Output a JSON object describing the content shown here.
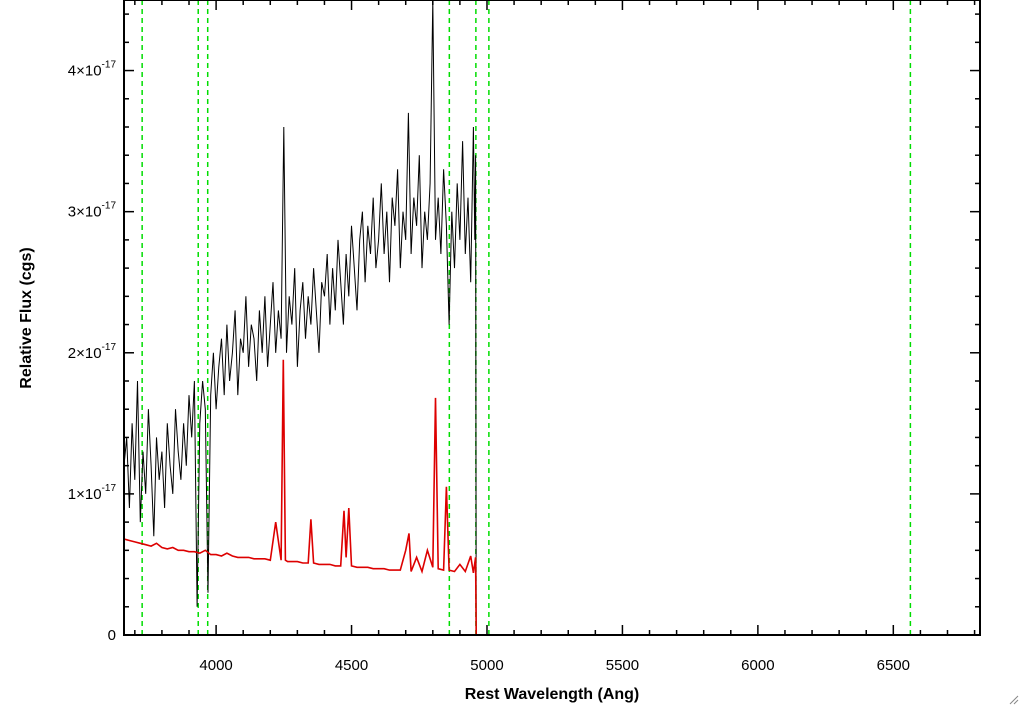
{
  "chart_data": {
    "type": "line",
    "title": "",
    "xlabel": "Rest Wavelength (Ang)",
    "ylabel": "Relative Flux (cgs)",
    "xlim": [
      3660,
      6820
    ],
    "ylim": [
      0,
      4.5e-17
    ],
    "x_ticks": [
      4000,
      4500,
      5000,
      5500,
      6000,
      6500
    ],
    "x_tick_labels": [
      "4000",
      "4500",
      "5000",
      "5500",
      "6000",
      "6500"
    ],
    "y_ticks": [
      0,
      1e-17,
      2e-17,
      3e-17,
      4e-17
    ],
    "y_tick_labels": [
      {
        "value": 0,
        "mantissa": "0",
        "exponent": ""
      },
      {
        "value": 1e-17,
        "mantissa": "1×10",
        "exponent": "-17"
      },
      {
        "value": 2e-17,
        "mantissa": "2×10",
        "exponent": "-17"
      },
      {
        "value": 3e-17,
        "mantissa": "3×10",
        "exponent": "-17"
      },
      {
        "value": 4e-17,
        "mantissa": "4×10",
        "exponent": "-17"
      }
    ],
    "grid": false,
    "legend": "none",
    "vertical_reference_lines": {
      "color": "#00dd00",
      "style": "dashed",
      "x": [
        3727,
        3934,
        3969,
        4861,
        4959,
        5007,
        6563
      ]
    },
    "series": [
      {
        "color": "#000000",
        "x": [
          3660,
          3670,
          3680,
          3690,
          3700,
          3710,
          3720,
          3730,
          3740,
          3750,
          3760,
          3770,
          3780,
          3790,
          3800,
          3810,
          3820,
          3830,
          3840,
          3850,
          3860,
          3870,
          3880,
          3890,
          3900,
          3910,
          3920,
          3930,
          3940,
          3950,
          3960,
          3970,
          3980,
          3990,
          4000,
          4010,
          4020,
          4030,
          4040,
          4050,
          4060,
          4070,
          4080,
          4090,
          4100,
          4110,
          4120,
          4130,
          4140,
          4150,
          4160,
          4170,
          4180,
          4190,
          4200,
          4210,
          4220,
          4230,
          4240,
          4250,
          4260,
          4270,
          4280,
          4290,
          4300,
          4310,
          4320,
          4330,
          4340,
          4350,
          4360,
          4370,
          4380,
          4390,
          4400,
          4410,
          4420,
          4430,
          4440,
          4450,
          4460,
          4470,
          4480,
          4490,
          4500,
          4510,
          4520,
          4530,
          4540,
          4550,
          4560,
          4570,
          4580,
          4590,
          4600,
          4610,
          4620,
          4630,
          4640,
          4650,
          4660,
          4670,
          4680,
          4690,
          4700,
          4710,
          4720,
          4730,
          4740,
          4750,
          4760,
          4770,
          4780,
          4790,
          4800,
          4810,
          4820,
          4830,
          4840,
          4850,
          4860,
          4870,
          4880,
          4890,
          4900,
          4910,
          4920,
          4930,
          4940,
          4950,
          4955,
          4958,
          4960,
          5000,
          5500,
          6000,
          6500,
          6820
        ],
        "values": [
          1.2e-17,
          1.4e-17,
          9e-18,
          1.5e-17,
          1.1e-17,
          1.8e-17,
          8e-18,
          1.3e-17,
          1e-17,
          1.6e-17,
          1.2e-17,
          7e-18,
          1.4e-17,
          1.1e-17,
          1.3e-17,
          9e-18,
          1.5e-17,
          1.2e-17,
          1e-17,
          1.6e-17,
          1.3e-17,
          1.1e-17,
          1.5e-17,
          1.2e-17,
          1.7e-17,
          1.4e-17,
          1.8e-17,
          2e-18,
          1.5e-17,
          1.8e-17,
          1.6e-17,
          3e-18,
          1.7e-17,
          2e-17,
          1.6e-17,
          1.9e-17,
          2.1e-17,
          1.7e-17,
          2.2e-17,
          1.8e-17,
          2e-17,
          2.3e-17,
          1.7e-17,
          2.1e-17,
          2e-17,
          2.4e-17,
          1.9e-17,
          2.2e-17,
          2.1e-17,
          1.8e-17,
          2.3e-17,
          2e-17,
          2.4e-17,
          1.9e-17,
          2.2e-17,
          2.5e-17,
          2e-17,
          2.3e-17,
          2.1e-17,
          3.6e-17,
          2e-17,
          2.4e-17,
          2.2e-17,
          2.6e-17,
          1.9e-17,
          2.3e-17,
          2.5e-17,
          2.1e-17,
          2.4e-17,
          2.2e-17,
          2.6e-17,
          2.3e-17,
          2e-17,
          2.5e-17,
          2.4e-17,
          2.7e-17,
          2.2e-17,
          2.6e-17,
          2.3e-17,
          2.8e-17,
          2.5e-17,
          2.2e-17,
          2.7e-17,
          2.4e-17,
          2.9e-17,
          2.6e-17,
          2.3e-17,
          2.8e-17,
          3e-17,
          2.5e-17,
          2.9e-17,
          2.7e-17,
          3.1e-17,
          2.6e-17,
          2.8e-17,
          3.2e-17,
          2.7e-17,
          3e-17,
          2.5e-17,
          3.1e-17,
          2.9e-17,
          3.3e-17,
          2.6e-17,
          3e-17,
          2.8e-17,
          3.7e-17,
          2.7e-17,
          3.1e-17,
          2.9e-17,
          3.4e-17,
          2.6e-17,
          3e-17,
          2.8e-17,
          3.2e-17,
          4.5e-17,
          2.8e-17,
          3.1e-17,
          2.7e-17,
          3.3e-17,
          2.9e-17,
          2.2e-17,
          3e-17,
          2.6e-17,
          3.2e-17,
          2.8e-17,
          3.5e-17,
          2.7e-17,
          3.1e-17,
          2.5e-17,
          3.6e-17,
          2.8e-17,
          3.4e-17,
          0,
          0,
          0,
          0,
          0,
          0
        ]
      },
      {
        "color": "#dd0000",
        "x": [
          3660,
          3680,
          3700,
          3720,
          3740,
          3760,
          3780,
          3800,
          3820,
          3840,
          3860,
          3880,
          3900,
          3920,
          3940,
          3960,
          3980,
          4000,
          4020,
          4040,
          4060,
          4080,
          4100,
          4120,
          4140,
          4160,
          4180,
          4200,
          4220,
          4240,
          4248,
          4256,
          4264,
          4280,
          4300,
          4320,
          4340,
          4350,
          4360,
          4380,
          4400,
          4420,
          4440,
          4460,
          4472,
          4480,
          4490,
          4500,
          4520,
          4540,
          4560,
          4580,
          4600,
          4620,
          4640,
          4660,
          4680,
          4700,
          4712,
          4720,
          4740,
          4760,
          4780,
          4800,
          4810,
          4820,
          4840,
          4850,
          4860,
          4880,
          4900,
          4920,
          4940,
          4950,
          4958,
          4960,
          5000,
          5500,
          6000,
          6500,
          6820
        ],
        "values": [
          6.8e-18,
          6.7e-18,
          6.6e-18,
          6.5e-18,
          6.4e-18,
          6.3e-18,
          6.5e-18,
          6.2e-18,
          6.1e-18,
          6.2e-18,
          6e-18,
          6e-18,
          5.9e-18,
          5.9e-18,
          5.8e-18,
          6e-18,
          5.7e-18,
          5.7e-18,
          5.6e-18,
          5.8e-18,
          5.6e-18,
          5.5e-18,
          5.5e-18,
          5.5e-18,
          5.4e-18,
          5.4e-18,
          5.4e-18,
          5.3e-18,
          8e-18,
          5.3e-18,
          1.95e-17,
          5.3e-18,
          5.2e-18,
          5.2e-18,
          5.2e-18,
          5.1e-18,
          5.1e-18,
          8.2e-18,
          5.1e-18,
          5e-18,
          5e-18,
          5e-18,
          4.9e-18,
          4.9e-18,
          8.8e-18,
          5.5e-18,
          9e-18,
          4.9e-18,
          4.8e-18,
          4.8e-18,
          4.8e-18,
          4.7e-18,
          4.7e-18,
          4.7e-18,
          4.6e-18,
          4.6e-18,
          4.6e-18,
          6e-18,
          7.2e-18,
          4.5e-18,
          5.5e-18,
          4.5e-18,
          6e-18,
          4.8e-18,
          1.68e-17,
          4.7e-18,
          4.6e-18,
          1.05e-17,
          4.6e-18,
          4.5e-18,
          5e-18,
          4.5e-18,
          5.6e-18,
          4.4e-18,
          5.5e-18,
          0,
          0,
          0,
          0,
          0,
          0
        ]
      }
    ]
  }
}
